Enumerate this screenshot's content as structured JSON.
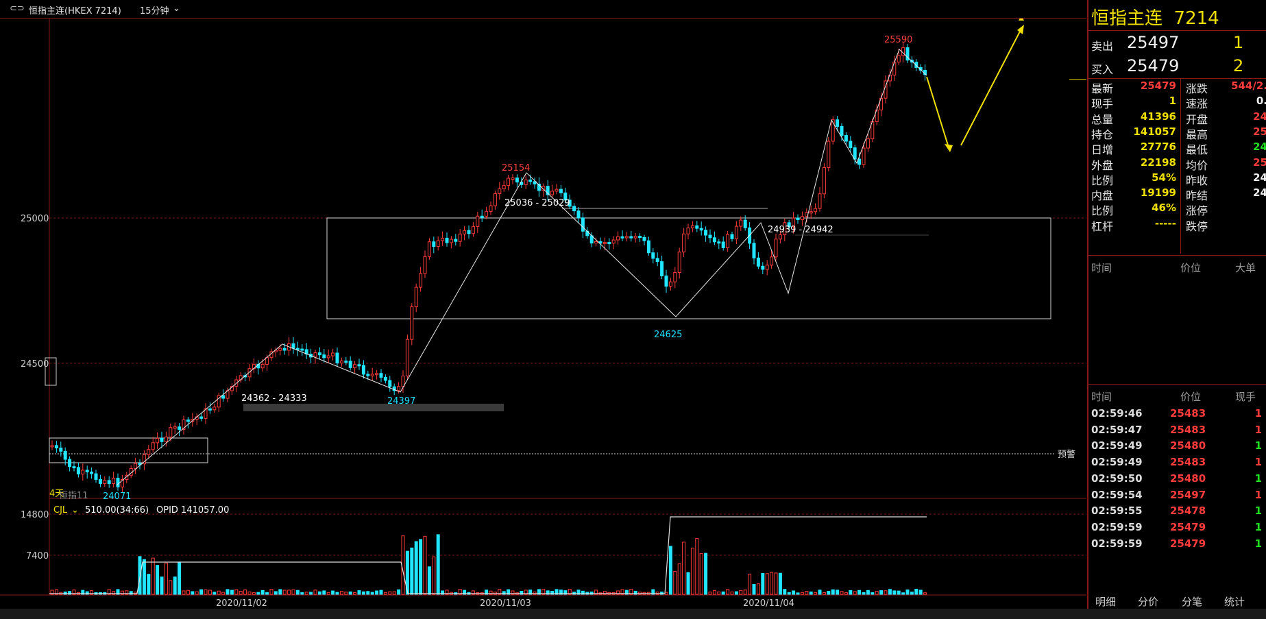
{
  "header": {
    "symbol_title": "恒指主连(HKEX 7214)",
    "period_label": "15分钟",
    "icon": "kline-mode-icon"
  },
  "chart": {
    "price_labels": [
      "25000",
      "24500"
    ],
    "annotations": [
      {
        "text": "25590",
        "color": "#ff4040"
      },
      {
        "text": "25154",
        "color": "#ff4040"
      },
      {
        "text": "25036 - 25029",
        "color": "#ffffff"
      },
      {
        "text": "24939 - 24942",
        "color": "#ffffff"
      },
      {
        "text": "24625",
        "color": "#20e0ff"
      },
      {
        "text": "24362 - 24333",
        "color": "#ffffff"
      },
      {
        "text": "24397",
        "color": "#20e0ff"
      },
      {
        "text": "24071",
        "color": "#20e0ff"
      },
      {
        "text": "4天",
        "color": "#f0e000"
      },
      {
        "text": "恒指11",
        "color": "#888888"
      },
      {
        "text": "预警",
        "color": "#e0e0e0"
      }
    ],
    "volume": {
      "indicator": "CJL",
      "readout": "510.00(34:66)",
      "opid": "OPID 141057.00",
      "labels": [
        "14800",
        "7400"
      ]
    },
    "dates": [
      "2020/11/02",
      "2020/11/03",
      "2020/11/04"
    ]
  },
  "panel": {
    "title": "恒指主连",
    "code": "7214",
    "ask": {
      "label": "卖出",
      "price": "25497",
      "qty": "1"
    },
    "bid": {
      "label": "买入",
      "price": "25479",
      "qty": "2"
    },
    "stats_left": [
      {
        "label": "最新",
        "value": "25479",
        "color": "red"
      },
      {
        "label": "现手",
        "value": "1",
        "color": "yel"
      },
      {
        "label": "总量",
        "value": "41396",
        "color": "yel"
      },
      {
        "label": "持仓",
        "value": "141057",
        "color": "yel"
      },
      {
        "label": "日增",
        "value": "27776",
        "color": "yel"
      },
      {
        "label": "外盘",
        "value": "22198",
        "color": "yel"
      },
      {
        "label": "比例",
        "value": "54%",
        "color": "yel"
      },
      {
        "label": "内盘",
        "value": "19199",
        "color": "yel"
      },
      {
        "label": "比例",
        "value": "46%",
        "color": "yel"
      },
      {
        "label": "杠杆",
        "value": "-----",
        "color": "yel"
      }
    ],
    "stats_right": [
      {
        "label": "涨跌",
        "value": "544/2.",
        "color": "red"
      },
      {
        "label": "速涨",
        "value": "0.",
        "color": "wht"
      },
      {
        "label": "开盘",
        "value": "24",
        "color": "red"
      },
      {
        "label": "最高",
        "value": "25",
        "color": "red"
      },
      {
        "label": "最低",
        "value": "24",
        "color": "grn"
      },
      {
        "label": "均价",
        "value": "25",
        "color": "red"
      },
      {
        "label": "昨收",
        "value": "24",
        "color": "wht"
      },
      {
        "label": "昨结",
        "value": "24",
        "color": "wht"
      },
      {
        "label": "涨停",
        "value": "",
        "color": "wht"
      },
      {
        "label": "跌停",
        "value": "",
        "color": "wht"
      }
    ],
    "big_order_header": [
      "时间",
      "价位",
      "大单"
    ],
    "ticks_header": [
      "时间",
      "价位",
      "现手"
    ],
    "ticks": [
      {
        "time": "02:59:46",
        "price": "25483",
        "qty": "1",
        "qcolor": "red"
      },
      {
        "time": "02:59:47",
        "price": "25483",
        "qty": "1",
        "qcolor": "red"
      },
      {
        "time": "02:59:49",
        "price": "25480",
        "qty": "1",
        "qcolor": "grn"
      },
      {
        "time": "02:59:49",
        "price": "25483",
        "qty": "1",
        "qcolor": "red"
      },
      {
        "time": "02:59:50",
        "price": "25480",
        "qty": "1",
        "qcolor": "grn"
      },
      {
        "time": "02:59:54",
        "price": "25497",
        "qty": "1",
        "qcolor": "red"
      },
      {
        "time": "02:59:55",
        "price": "25478",
        "qty": "1",
        "qcolor": "grn"
      },
      {
        "time": "02:59:59",
        "price": "25479",
        "qty": "1",
        "qcolor": "grn"
      },
      {
        "time": "02:59:59",
        "price": "25479",
        "qty": "1",
        "qcolor": "grn"
      }
    ],
    "tabs": [
      "明细",
      "分价",
      "分笔",
      "统计"
    ]
  }
}
